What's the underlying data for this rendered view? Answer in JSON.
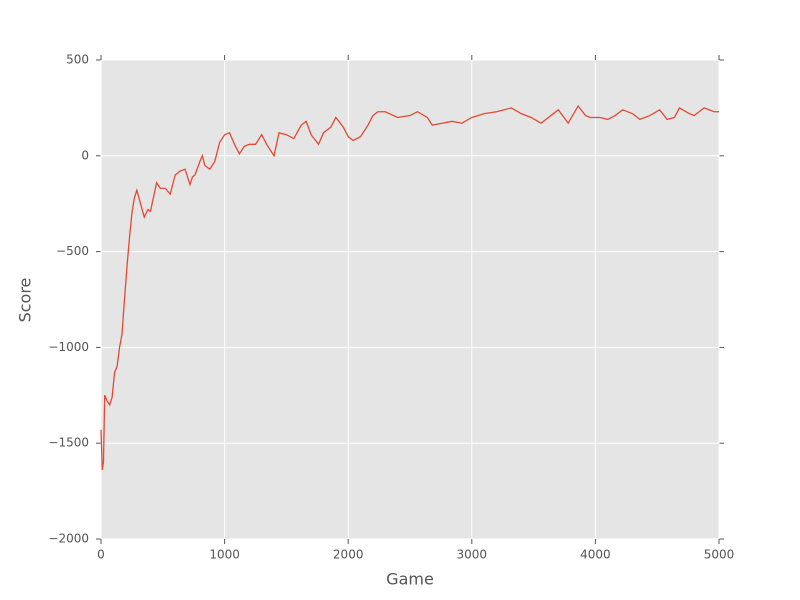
{
  "chart_data": {
    "type": "line",
    "x_label": "Game",
    "y_label": "Score",
    "x": [
      0,
      10,
      20,
      30,
      50,
      70,
      90,
      110,
      130,
      150,
      170,
      190,
      210,
      230,
      250,
      270,
      290,
      320,
      350,
      380,
      400,
      430,
      450,
      480,
      520,
      560,
      600,
      640,
      680,
      720,
      740,
      760,
      800,
      820,
      840,
      880,
      920,
      960,
      1000,
      1040,
      1080,
      1120,
      1160,
      1200,
      1250,
      1300,
      1340,
      1380,
      1400,
      1440,
      1500,
      1560,
      1620,
      1660,
      1700,
      1760,
      1800,
      1860,
      1900,
      1960,
      2000,
      2040,
      2100,
      2160,
      2200,
      2240,
      2300,
      2400,
      2500,
      2560,
      2640,
      2680,
      2760,
      2840,
      2920,
      3000,
      3100,
      3200,
      3320,
      3400,
      3480,
      3560,
      3640,
      3700,
      3780,
      3860,
      3920,
      3960,
      4040,
      4100,
      4160,
      4220,
      4300,
      4360,
      4440,
      4520,
      4580,
      4640,
      4680,
      4760,
      4800,
      4880,
      4960,
      5000
    ],
    "series": [
      {
        "name": "Score",
        "color": "#e24a33",
        "values": [
          -1430,
          -1640,
          -1600,
          -1250,
          -1280,
          -1300,
          -1260,
          -1130,
          -1100,
          -1000,
          -930,
          -750,
          -580,
          -430,
          -300,
          -220,
          -180,
          -250,
          -320,
          -280,
          -290,
          -200,
          -140,
          -170,
          -170,
          -200,
          -100,
          -80,
          -70,
          -150,
          -110,
          -100,
          -30,
          0,
          -50,
          -70,
          -30,
          70,
          110,
          120,
          60,
          10,
          50,
          60,
          60,
          110,
          60,
          20,
          0,
          120,
          110,
          90,
          160,
          180,
          110,
          60,
          120,
          150,
          200,
          150,
          100,
          80,
          100,
          160,
          210,
          230,
          230,
          200,
          210,
          230,
          200,
          160,
          170,
          180,
          170,
          200,
          220,
          230,
          250,
          220,
          200,
          170,
          210,
          240,
          170,
          260,
          210,
          200,
          200,
          190,
          210,
          240,
          220,
          190,
          210,
          240,
          190,
          200,
          250,
          220,
          210,
          250,
          230,
          230
        ]
      }
    ],
    "xlim": [
      0,
      5000
    ],
    "ylim": [
      -2000,
      500
    ],
    "xticks": [
      0,
      1000,
      2000,
      3000,
      4000,
      5000
    ],
    "yticks": [
      {
        "value": -2000,
        "label": "−2000"
      },
      {
        "value": -1500,
        "label": "−1500"
      },
      {
        "value": -1000,
        "label": "−1000"
      },
      {
        "value": -500,
        "label": "−500"
      },
      0,
      500
    ],
    "grid": true
  }
}
